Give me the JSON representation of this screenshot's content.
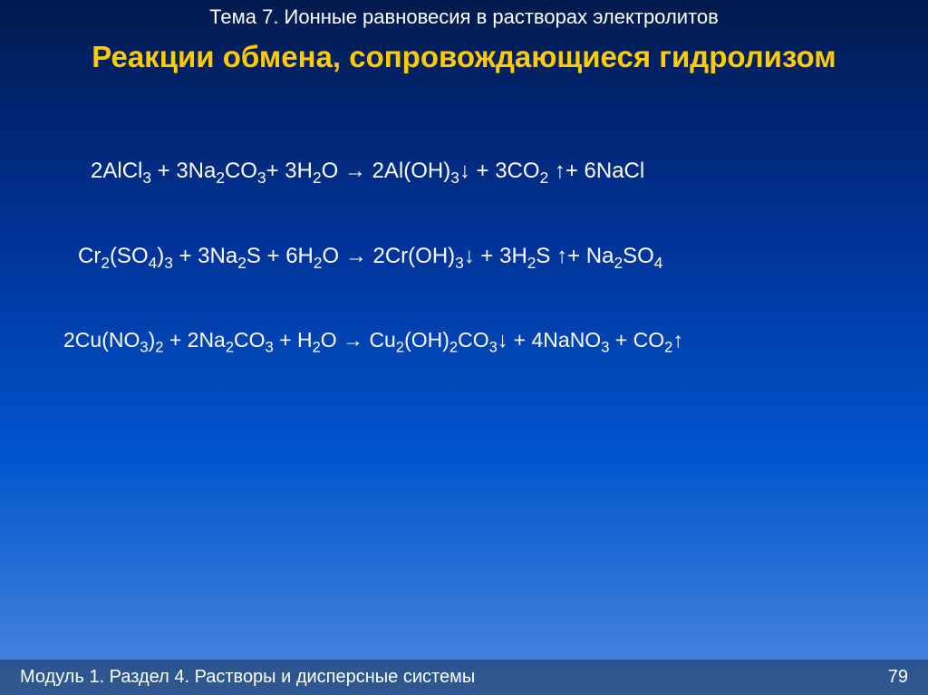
{
  "topic": "Тема 7. Ионные равновесия в растворах электролитов",
  "title": "Реакции обмена, сопровождающиеся гидролизом",
  "footer": {
    "section": "Модуль 1. Раздел 4. Растворы и дисперсные системы",
    "page": "79"
  },
  "eq1": {
    "p": "2AlCl",
    "a": "3",
    "b": " + 3Na",
    "c": "2",
    "d": "CO",
    "e": "3",
    "f": "+ 3H",
    "g": "2",
    "h": "O  → 2Al(OH)",
    "i": "3",
    "j": "↓ + 3CO",
    "k": "2",
    "l": " ↑+ 6NaCl"
  },
  "eq2": {
    "p": "Cr",
    "a": "2",
    "b": "(SO",
    "c": "4",
    "d": ")",
    "e": "3",
    "f": " + 3Na",
    "g": "2",
    "h": "S + 6H",
    "i": "2",
    "j": "O →  2Cr(OH)",
    "k": "3",
    "l": "↓ + 3H",
    "m": "2",
    "n": "S ↑+ Na",
    "o": "2",
    "q": "SO",
    "r": "4"
  },
  "eq3": {
    "p": "2Cu(NO",
    "a": "3",
    "b": ")",
    "c": "2",
    "d": " + 2Na",
    "e": "2",
    "f": "CO",
    "g": "3",
    "h": " + H",
    "i": "2",
    "j": "O → Cu",
    "k": "2",
    "l": "(OH)",
    "m": "2",
    "n": "CO",
    "o": "3",
    "q": "↓ + 4NaNO",
    "r": "3",
    "s": " + CO",
    "t": "2",
    "u": "↑"
  }
}
